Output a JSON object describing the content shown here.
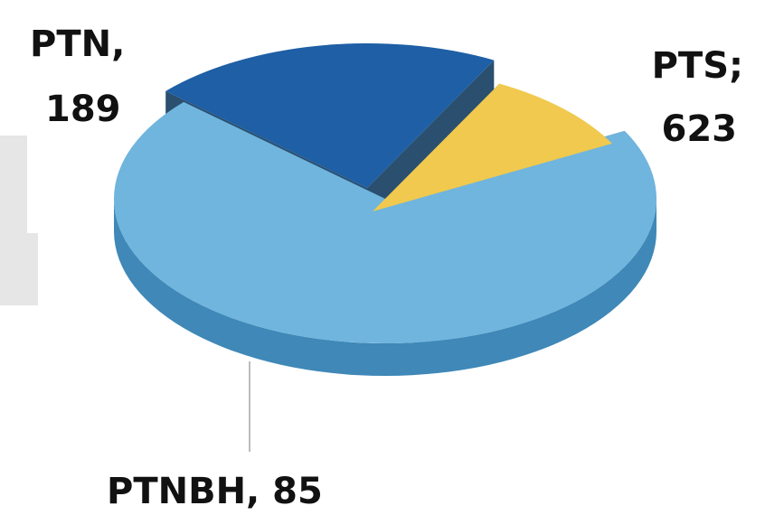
{
  "chart_data": {
    "type": "pie",
    "title": "",
    "slices": [
      {
        "label_name": "PTS;",
        "label_value": "623",
        "name": "PTS",
        "value": 623,
        "color": "#6fb5de",
        "side": "#3f88b8"
      },
      {
        "label_name": "PTN,",
        "label_value": "189",
        "name": "PTN",
        "value": 189,
        "color": "#1e5fa5",
        "side": "#0f3c73"
      },
      {
        "label_name": "PTNBH, 85",
        "name": "PTNBH",
        "value": 85,
        "color": "#f0c94e",
        "side": "#c99a28"
      }
    ]
  },
  "colors": {
    "top_edge": "#2a4f6f",
    "leader_line": "#bdbdbd"
  }
}
